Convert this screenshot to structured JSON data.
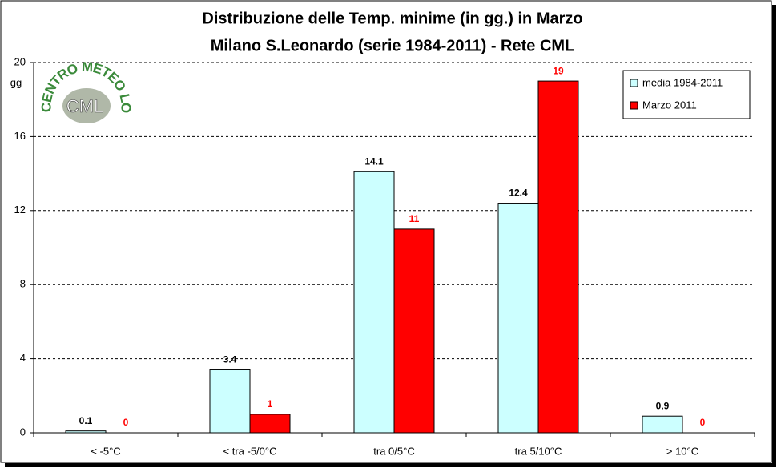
{
  "chart_data": {
    "type": "bar",
    "title": [
      "Distribuzione delle Temp. minime (in gg.) in Marzo",
      "Milano S.Leonardo (serie 1984-2011) - Rete CML"
    ],
    "y_label": "gg",
    "categories": [
      "< -5°C",
      "< tra -5/0°C",
      "tra 0/5°C",
      "tra 5/10°C",
      "> 10°C"
    ],
    "series": [
      {
        "name": "media 1984-2011",
        "color": "#ccffff",
        "label_color": "#000000",
        "values": [
          0.1,
          3.4,
          14.1,
          12.4,
          0.9
        ]
      },
      {
        "name": "Marzo 2011",
        "color": "#ff0000",
        "label_color": "#ff0000",
        "values": [
          0,
          1,
          11,
          19,
          0
        ]
      }
    ],
    "ylim": [
      0,
      20
    ],
    "yticks": [
      0,
      4,
      8,
      12,
      16,
      20
    ],
    "grid": true,
    "legend": "top-right"
  },
  "logo": {
    "ring": "CENTRO METEO LOMBARDO",
    "abbr": "CML"
  }
}
